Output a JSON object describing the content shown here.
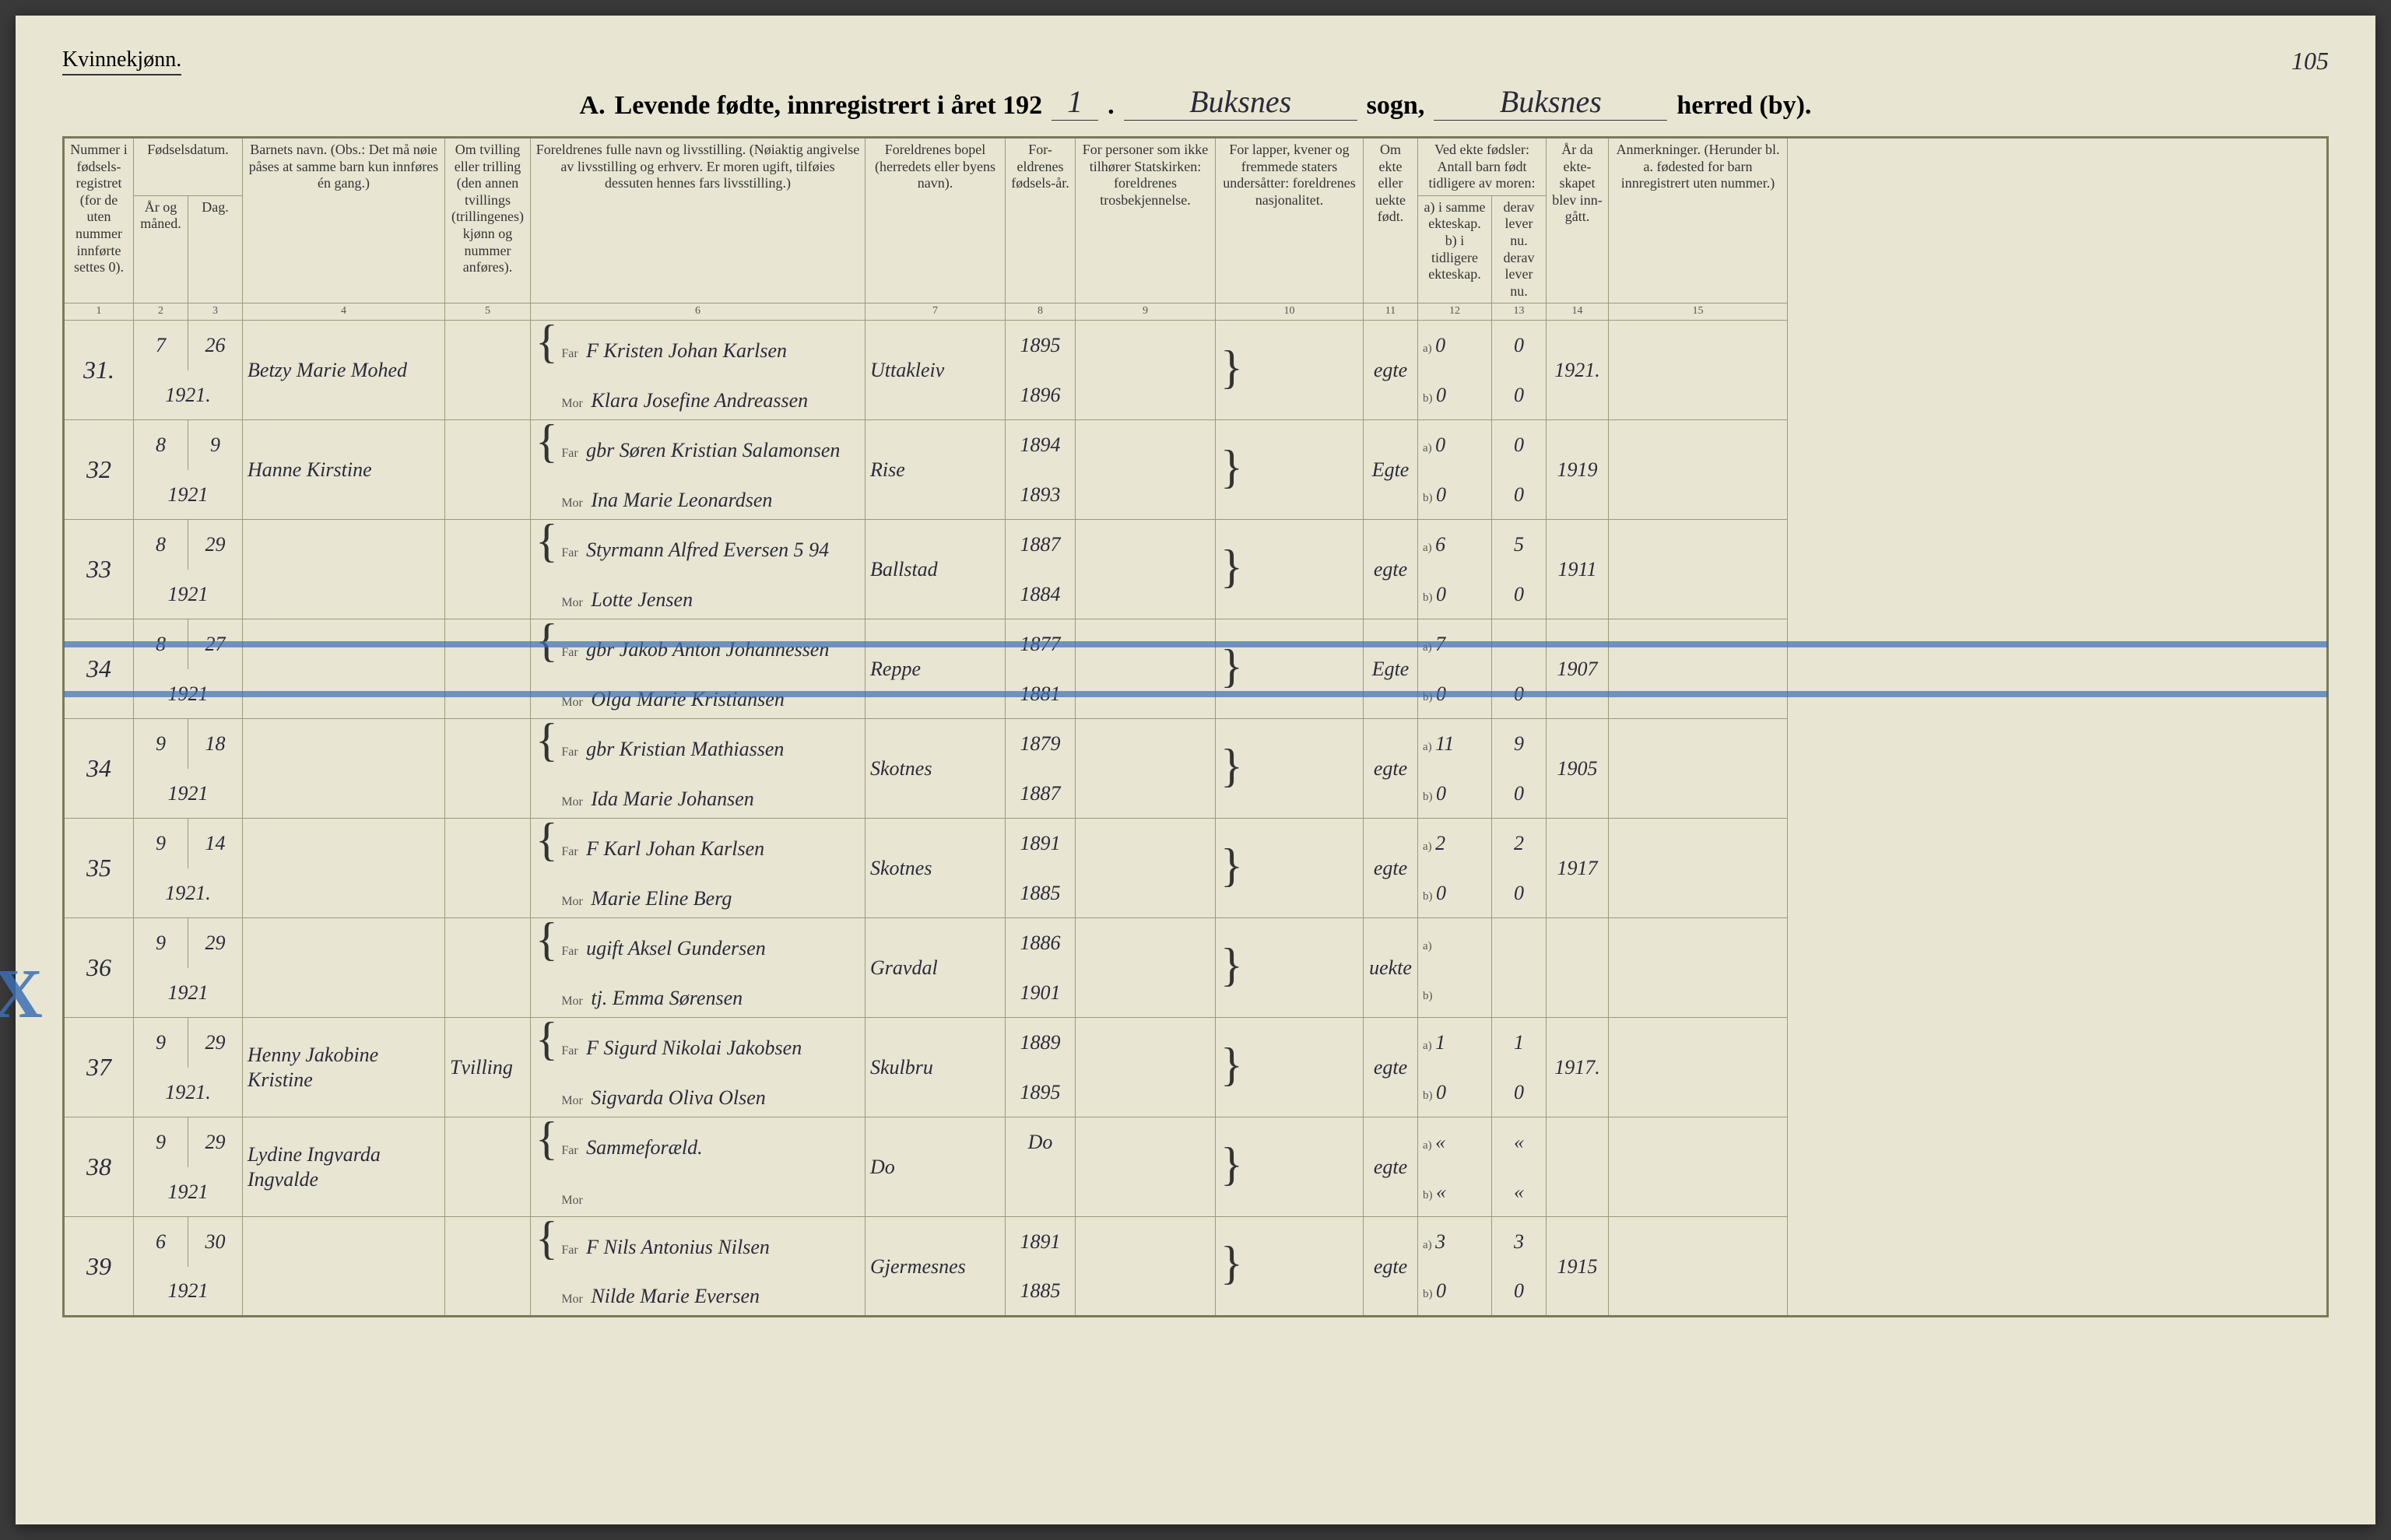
{
  "page_number_handwritten": "105",
  "gender_label": "Kvinnekjønn.",
  "title": {
    "prefix_letter": "A.",
    "text1": "Levende fødte, innregistrert i året 192",
    "year_suffix": "1",
    "period": ".",
    "sogn_text": "sogn,",
    "herred_text": "herred (by).",
    "parish_hand": "Buksnes",
    "district_hand": "Buksnes"
  },
  "headers": {
    "c1": "Nummer i fødsels-registret (for de uten nummer innførte settes 0).",
    "c23_top": "Fødselsdatum.",
    "c2": "År og måned.",
    "c3": "Dag.",
    "c4": "Barnets navn.\n(Obs.: Det må nøie påses at samme barn kun innføres én gang.)",
    "c5": "Om tvilling eller trilling (den annen tvillings (trillingenes) kjønn og nummer anføres).",
    "c6": "Foreldrenes fulle navn og livsstilling.\n(Nøiaktig angivelse av livsstilling og erhverv. Er moren ugift, tilføies dessuten hennes fars livsstilling.)",
    "c7": "Foreldrenes bopel\n(herredets eller byens navn).",
    "c8": "For-eldrenes fødsels-år.",
    "c9": "For personer som ikke tilhører Statskirken: foreldrenes trosbekjennelse.",
    "c10": "For lapper, kvener og fremmede staters undersåtter: foreldrenes nasjonalitet.",
    "c11": "Om ekte eller uekte født.",
    "c12_13_top": "Ved ekte fødsler:\nAntall barn født tidligere av moren:",
    "c12": "a) i samme ekteskap.\nb) i tidligere ekteskap.",
    "c13": "derav lever nu.\nderav lever nu.",
    "c14": "År da ekte-skapet blev inn-gått.",
    "c15": "Anmerkninger.\n(Herunder bl. a. fødested for barn innregistrert uten nummer.)"
  },
  "colnums": [
    "1",
    "2",
    "3",
    "4",
    "5",
    "6",
    "7",
    "8",
    "9",
    "10",
    "11",
    "12",
    "13",
    "14",
    "15"
  ],
  "parent_labels": {
    "far": "Far",
    "mor": "Mor",
    "a": "a)",
    "b": "b)"
  },
  "rows": [
    {
      "num": "31.",
      "month": "7",
      "day": "26",
      "year_line": "1921.",
      "child_name": "Betzy Marie Mohed",
      "far": "F Kristen Johan Karlsen",
      "mor": "Klara Josefine Andreassen",
      "bopel": "Uttakleiv",
      "far_year": "1895",
      "mor_year": "1896",
      "ekte": "egte",
      "a_same": "0",
      "a_lev": "0",
      "b_prev": "0",
      "b_lev": "0",
      "marriage": "1921."
    },
    {
      "num": "32",
      "month": "8",
      "day": "9",
      "year_line": "1921",
      "child_name": "Hanne Kirstine",
      "far": "gbr Søren Kristian Salamonsen",
      "mor": "Ina Marie Leonardsen",
      "bopel": "Rise",
      "far_year": "1894",
      "mor_year": "1893",
      "ekte": "Egte",
      "a_same": "0",
      "a_lev": "0",
      "b_prev": "0",
      "b_lev": "0",
      "marriage": "1919"
    },
    {
      "num": "33",
      "month": "8",
      "day": "29",
      "year_line": "1921",
      "child_name": "",
      "far": "Styrmann Alfred Eversen  5 94",
      "mor": "Lotte Jensen",
      "bopel": "Ballstad",
      "far_year": "1887",
      "mor_year": "1884",
      "ekte": "egte",
      "a_same": "6",
      "a_lev": "5",
      "b_prev": "0",
      "b_lev": "0",
      "marriage": "1911"
    },
    {
      "num": "34",
      "month": "8",
      "day": "27",
      "year_line": "1921",
      "child_name": "",
      "far": "gbr Jakob Anton Johannessen",
      "mor": "Olga Marie Kristiansen",
      "bopel": "Reppe",
      "far_year": "1877",
      "mor_year": "1881",
      "ekte": "Egte",
      "a_same": "7",
      "a_lev": "",
      "b_prev": "0",
      "b_lev": "0",
      "marriage": "1907",
      "struck": true
    },
    {
      "num": "34",
      "month": "9",
      "day": "18",
      "year_line": "1921",
      "child_name": "",
      "far": "gbr Kristian Mathiassen",
      "mor": "Ida Marie Johansen",
      "bopel": "Skotnes",
      "far_year": "1879",
      "mor_year": "1887",
      "ekte": "egte",
      "a_same": "11",
      "a_lev": "9",
      "b_prev": "0",
      "b_lev": "0",
      "marriage": "1905"
    },
    {
      "num": "35",
      "month": "9",
      "day": "14",
      "year_line": "1921.",
      "child_name": "",
      "far": "F Karl Johan Karlsen",
      "mor": "Marie Eline Berg",
      "bopel": "Skotnes",
      "far_year": "1891",
      "mor_year": "1885",
      "ekte": "egte",
      "a_same": "2",
      "a_lev": "2",
      "b_prev": "0",
      "b_lev": "0",
      "marriage": "1917"
    },
    {
      "num": "36",
      "month": "9",
      "day": "29",
      "year_line": "1921",
      "child_name": "",
      "far": "ugift Aksel Gundersen",
      "mor": "tj. Emma Sørensen",
      "bopel": "Gravdal",
      "far_year": "1886",
      "mor_year": "1901",
      "ekte": "uekte",
      "a_same": "",
      "a_lev": "",
      "b_prev": "",
      "b_lev": "",
      "marriage": "",
      "x_mark": true
    },
    {
      "num": "37",
      "month": "9",
      "day": "29",
      "year_line": "1921.",
      "child_name": "Henny Jakobine Kristine",
      "far": "F Sigurd Nikolai Jakobsen",
      "mor": "Sigvarda Oliva Olsen",
      "bopel": "Skulbru",
      "far_year": "1889",
      "mor_year": "1895",
      "ekte": "egte",
      "a_same": "1",
      "a_lev": "1",
      "b_prev": "0",
      "b_lev": "0",
      "marriage": "1917.",
      "twin_note": "Tvilling"
    },
    {
      "num": "38",
      "month": "9",
      "day": "29",
      "year_line": "1921",
      "child_name": "Lydine Ingvarda Ingvalde",
      "far": "Sammeforæld.",
      "mor": "",
      "bopel": "Do",
      "far_year": "Do",
      "mor_year": "",
      "ekte": "egte",
      "a_same": "«",
      "a_lev": "«",
      "b_prev": "«",
      "b_lev": "«",
      "marriage": ""
    },
    {
      "num": "39",
      "month": "6",
      "day": "30",
      "year_line": "1921",
      "child_name": "",
      "far": "F Nils Antonius Nilsen",
      "mor": "Nilde Marie Eversen",
      "bopel": "Gjermesnes",
      "far_year": "1891",
      "mor_year": "1885",
      "ekte": "egte",
      "a_same": "3",
      "a_lev": "3",
      "b_prev": "0",
      "b_lev": "0",
      "marriage": "1915"
    }
  ]
}
